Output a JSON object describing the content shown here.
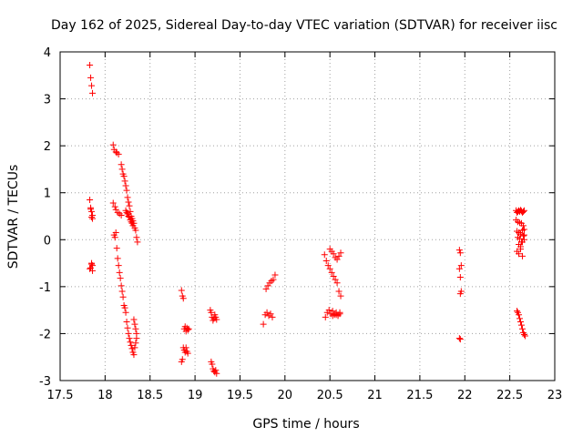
{
  "chart_data": {
    "type": "scatter",
    "title": "Day 162 of 2025, Sidereal Day-to-day VTEC variation (SDTVAR) for receiver iisc",
    "xlabel": "GPS time / hours",
    "ylabel": "SDTVAR / TECUs",
    "xlim": [
      17.5,
      23
    ],
    "ylim": [
      -3,
      4
    ],
    "x_ticks": [
      "17.5",
      "18",
      "18.5",
      "19",
      "19.5",
      "20",
      "20.5",
      "21",
      "21.5",
      "22",
      "22.5",
      "23"
    ],
    "y_ticks": [
      "-3",
      "-2",
      "-1",
      "0",
      "1",
      "2",
      "3",
      "4"
    ],
    "grid": true,
    "marker": "+",
    "color": "#ff0000",
    "series": [
      {
        "name": "SDTVAR",
        "x": [
          17.83,
          17.84,
          17.85,
          17.86,
          17.83,
          17.84,
          17.85,
          17.86,
          17.84,
          17.85,
          17.86,
          17.83,
          17.85,
          17.86,
          17.84,
          17.86,
          17.85,
          18.09,
          18.1,
          18.12,
          18.13,
          18.15,
          18.09,
          18.11,
          18.12,
          18.14,
          18.16,
          18.18,
          18.1,
          18.12,
          18.11,
          18.13,
          18.14,
          18.15,
          18.16,
          18.17,
          18.18,
          18.19,
          18.2,
          18.21,
          18.22,
          18.23,
          18.24,
          18.25,
          18.26,
          18.27,
          18.28,
          18.29,
          18.3,
          18.31,
          18.32,
          18.33,
          18.34,
          18.35,
          18.18,
          18.19,
          18.2,
          18.21,
          18.22,
          18.23,
          18.24,
          18.25,
          18.26,
          18.27,
          18.28,
          18.29,
          18.3,
          18.31,
          18.32,
          18.33,
          18.34,
          18.35,
          18.36,
          18.23,
          18.24,
          18.25,
          18.26,
          18.27,
          18.28,
          18.29,
          18.3,
          18.31,
          18.32,
          18.33,
          18.34,
          18.35,
          18.85,
          18.86,
          18.87,
          18.88,
          18.89,
          18.9,
          18.91,
          18.92,
          18.93,
          18.87,
          18.88,
          18.89,
          18.9,
          18.91,
          18.92,
          18.85,
          18.86,
          19.17,
          19.18,
          19.19,
          19.2,
          19.21,
          19.22,
          19.23,
          19.24,
          19.18,
          19.19,
          19.2,
          19.21,
          19.22,
          19.23,
          19.24,
          19.76,
          19.78,
          19.8,
          19.82,
          19.84,
          19.86,
          19.79,
          19.81,
          19.83,
          19.85,
          19.87,
          19.89,
          20.44,
          20.46,
          20.48,
          20.5,
          20.52,
          20.54,
          20.56,
          20.58,
          20.6,
          20.62,
          20.45,
          20.47,
          20.49,
          20.51,
          20.53,
          20.55,
          20.57,
          20.59,
          20.61,
          20.5,
          20.52,
          20.54,
          20.56,
          20.58,
          20.6,
          20.62,
          20.53,
          20.55,
          20.57,
          20.59,
          20.61,
          21.94,
          21.95,
          21.96,
          21.94,
          21.95,
          21.96,
          21.95,
          21.94,
          21.95,
          22.57,
          22.58,
          22.59,
          22.6,
          22.61,
          22.62,
          22.63,
          22.64,
          22.65,
          22.66,
          22.57,
          22.59,
          22.61,
          22.63,
          22.65,
          22.58,
          22.6,
          22.62,
          22.64,
          22.66,
          22.59,
          22.61,
          22.63,
          22.65,
          22.6,
          22.62,
          22.64,
          22.66,
          22.58,
          22.6,
          22.62,
          22.64,
          22.66,
          22.58,
          22.59,
          22.6,
          22.61,
          22.62,
          22.63,
          22.64,
          22.65,
          22.66,
          22.67
        ],
        "y": [
          3.72,
          3.45,
          3.28,
          3.12,
          0.85,
          0.68,
          0.6,
          0.52,
          0.65,
          0.48,
          0.45,
          -0.62,
          -0.52,
          -0.55,
          -0.6,
          -0.66,
          -0.5,
          2.02,
          1.92,
          1.87,
          1.85,
          1.82,
          0.78,
          0.7,
          0.64,
          0.58,
          0.55,
          0.52,
          0.1,
          0.15,
          0.05,
          -0.18,
          -0.4,
          -0.55,
          -0.7,
          -0.82,
          -0.98,
          -1.1,
          -1.22,
          -1.4,
          -1.45,
          -1.55,
          -1.75,
          -1.88,
          -2.0,
          -2.1,
          -2.18,
          -2.25,
          -2.32,
          -2.4,
          -2.45,
          -2.3,
          -2.2,
          -2.1,
          1.6,
          1.5,
          1.4,
          1.35,
          1.25,
          1.15,
          1.05,
          0.9,
          0.8,
          0.72,
          0.6,
          0.5,
          0.45,
          0.4,
          0.35,
          0.25,
          0.2,
          0.05,
          -0.05,
          0.62,
          0.58,
          0.55,
          0.5,
          0.48,
          0.42,
          0.38,
          0.35,
          0.3,
          -1.7,
          -1.8,
          -1.9,
          -2.0,
          -1.08,
          -1.2,
          -1.25,
          -1.9,
          -1.85,
          -1.95,
          -1.88,
          -1.92,
          -1.9,
          -2.3,
          -2.35,
          -2.4,
          -2.3,
          -2.38,
          -2.42,
          -2.6,
          -2.55,
          -1.5,
          -1.55,
          -1.65,
          -1.72,
          -1.68,
          -1.6,
          -1.65,
          -1.7,
          -2.6,
          -2.65,
          -2.75,
          -2.8,
          -2.82,
          -2.78,
          -2.85,
          -1.8,
          -1.6,
          -1.55,
          -1.62,
          -1.58,
          -1.65,
          -1.05,
          -0.98,
          -0.92,
          -0.88,
          -0.85,
          -0.75,
          -0.32,
          -0.45,
          -0.55,
          -0.62,
          -0.7,
          -0.78,
          -0.85,
          -0.92,
          -1.1,
          -1.2,
          -1.65,
          -1.55,
          -1.5,
          -1.58,
          -1.62,
          -1.6,
          -1.55,
          -1.6,
          -1.58,
          -0.2,
          -0.25,
          -0.3,
          -0.38,
          -0.42,
          -0.35,
          -0.28,
          -1.52,
          -1.58,
          -1.6,
          -1.62,
          -1.55,
          -0.22,
          -0.28,
          -0.55,
          -0.62,
          -0.8,
          -1.1,
          -1.15,
          -2.1,
          -2.12,
          0.62,
          0.58,
          0.6,
          0.62,
          0.6,
          0.63,
          0.61,
          0.58,
          0.6,
          0.62,
          0.42,
          0.38,
          0.36,
          0.35,
          0.3,
          0.18,
          0.15,
          0.12,
          0.2,
          0.22,
          0.05,
          0.02,
          -0.05,
          0.08,
          -0.1,
          -0.15,
          -0.05,
          0.1,
          -0.25,
          -0.3,
          -0.2,
          -0.35,
          0.0,
          -1.52,
          -1.55,
          -1.6,
          -1.68,
          -1.75,
          -1.82,
          -1.9,
          -1.98,
          -2.02,
          -2.05
        ]
      }
    ]
  }
}
